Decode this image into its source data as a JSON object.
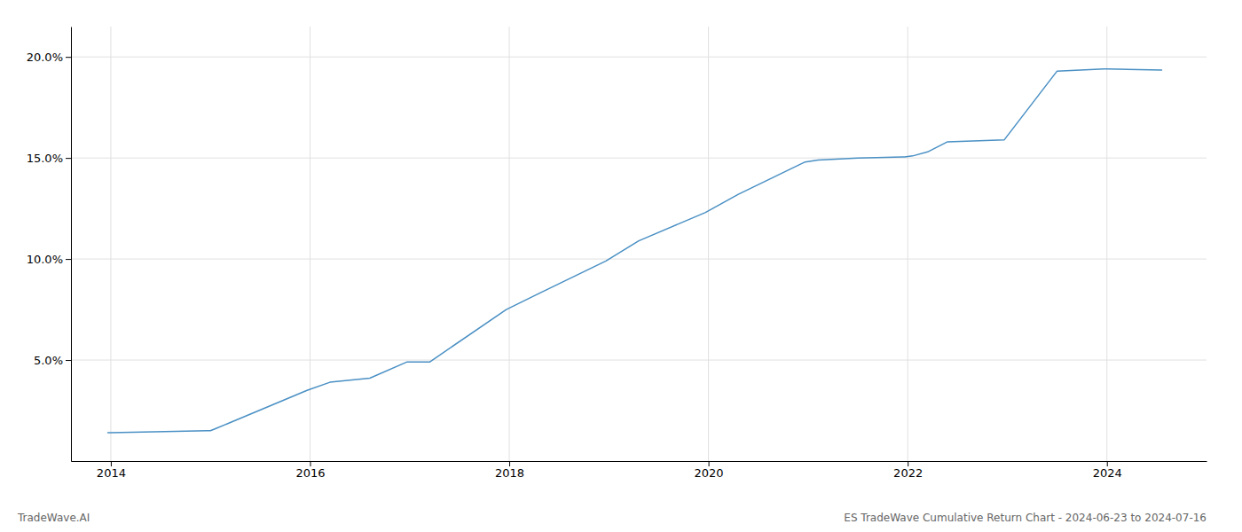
{
  "chart_data": {
    "type": "line",
    "x": [
      2013.97,
      2014.0,
      2014.97,
      2015.0,
      2015.05,
      2015.97,
      2016.2,
      2016.6,
      2016.97,
      2017.2,
      2017.97,
      2018.3,
      2018.97,
      2019.3,
      2019.97,
      2020.3,
      2020.97,
      2021.1,
      2021.5,
      2021.97,
      2022.05,
      2022.2,
      2022.4,
      2022.97,
      2023.5,
      2023.97,
      2024.0,
      2024.55
    ],
    "values": [
      1.4,
      1.4,
      1.5,
      1.5,
      1.6,
      3.5,
      3.9,
      4.1,
      4.9,
      4.9,
      7.5,
      8.3,
      9.9,
      10.9,
      12.3,
      13.2,
      14.8,
      14.9,
      15.0,
      15.05,
      15.1,
      15.3,
      15.8,
      15.9,
      19.3,
      19.4,
      19.4,
      19.35
    ],
    "color": "#4a90c4",
    "xlim": [
      2013.6,
      2025.0
    ],
    "ylim": [
      0.0,
      21.5
    ],
    "xticks": [
      2014,
      2016,
      2018,
      2020,
      2022,
      2024
    ],
    "yticks": [
      {
        "value": 5.0,
        "label": "5.0%"
      },
      {
        "value": 10.0,
        "label": "10.0%"
      },
      {
        "value": 15.0,
        "label": "15.0%"
      },
      {
        "value": 20.0,
        "label": "20.0%"
      }
    ],
    "grid": true,
    "annotations": [
      "TradeWave.AI",
      "ES TradeWave Cumulative Return Chart - 2024-06-23 to 2024-07-16"
    ]
  }
}
